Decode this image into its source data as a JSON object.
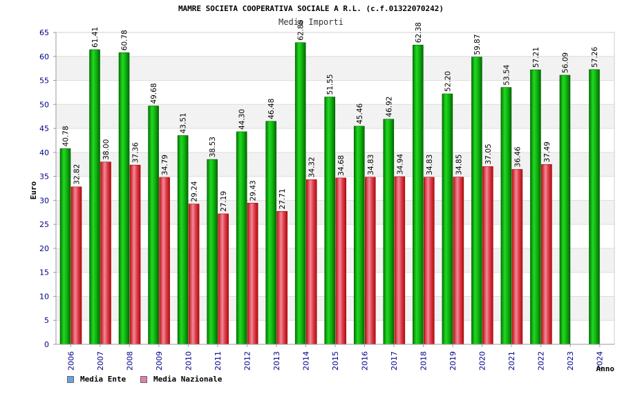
{
  "chart_data": {
    "type": "bar",
    "title": "MAMRE SOCIETA COOPERATIVA SOCIALE A R.L. (c.f.01322070242)",
    "subtitle": "Media Importi",
    "xlabel": "Anno",
    "ylabel": "Euro",
    "ylim": [
      0,
      65
    ],
    "yticks": [
      0,
      5,
      10,
      15,
      20,
      25,
      30,
      35,
      40,
      45,
      50,
      55,
      60,
      65
    ],
    "categories": [
      "2006",
      "2007",
      "2008",
      "2009",
      "2010",
      "2011",
      "2012",
      "2013",
      "2014",
      "2015",
      "2016",
      "2017",
      "2018",
      "2019",
      "2020",
      "2021",
      "2022",
      "2023",
      "2024"
    ],
    "series": [
      {
        "name": "Media Ente",
        "color": "#00a000",
        "legend_color": "#66a3e0",
        "values": [
          40.78,
          61.41,
          60.78,
          49.68,
          43.51,
          38.53,
          44.3,
          46.48,
          62.88,
          51.55,
          45.46,
          46.92,
          62.38,
          52.2,
          59.87,
          53.54,
          57.21,
          56.09,
          57.26
        ],
        "labels": [
          "40.78",
          "61.41",
          "60.78",
          "49.68",
          "43.51",
          "38.53",
          "44.30",
          "46.48",
          "62.88",
          "51.55",
          "45.46",
          "46.92",
          "62.38",
          "52.20",
          "59.87",
          "53.54",
          "57.21",
          "56.09",
          "57.26"
        ]
      },
      {
        "name": "Media Nazionale",
        "color": "#e02020",
        "legend_color": "#e080a8",
        "values": [
          32.82,
          38.0,
          37.36,
          34.79,
          29.24,
          27.19,
          29.43,
          27.71,
          34.32,
          34.68,
          34.83,
          34.94,
          34.83,
          34.85,
          37.05,
          36.46,
          37.49,
          null,
          null
        ],
        "labels": [
          "32.82",
          "38.00",
          "37.36",
          "34.79",
          "29.24",
          "27.19",
          "29.43",
          "27.71",
          "34.32",
          "34.68",
          "34.83",
          "34.94",
          "34.83",
          "34.85",
          "37.05",
          "36.46",
          "37.49",
          null,
          null
        ]
      }
    ],
    "grid": true,
    "legend_position": "bottom-left"
  }
}
